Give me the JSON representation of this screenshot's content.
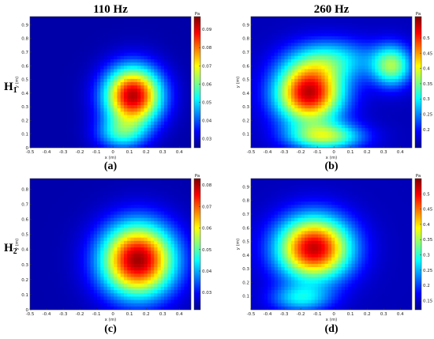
{
  "figure": {
    "column_titles": [
      "110 Hz",
      "260 Hz"
    ],
    "row_labels": [
      {
        "main": "H",
        "sub": "1"
      },
      {
        "main": "H",
        "sub": "2"
      }
    ]
  },
  "colormap": [
    "#000090",
    "#0000ff",
    "#0080ff",
    "#00ffff",
    "#80ff80",
    "#ffff00",
    "#ff8000",
    "#ff0000",
    "#800000"
  ],
  "chart_data": [
    {
      "type": "heatmap",
      "label": "(a)",
      "xlabel": "x (m)",
      "ylabel": "y (m)",
      "xlim": [
        -0.5,
        0.47
      ],
      "ylim": [
        0,
        0.96
      ],
      "xticks": [
        -0.5,
        -0.4,
        -0.3,
        -0.2,
        -0.1,
        0,
        0.1,
        0.2,
        0.3,
        0.4
      ],
      "yticks": [
        0,
        0.1,
        0.2,
        0.3,
        0.4,
        0.5,
        0.6,
        0.7,
        0.8,
        0.9
      ],
      "colorbar_unit": "Pa",
      "colorbar_range": [
        0.025,
        0.097
      ],
      "colorbar_ticks": [
        0.03,
        0.04,
        0.05,
        0.06,
        0.07,
        0.08,
        0.09
      ],
      "base": 0.027,
      "blobs": [
        {
          "x": 0.12,
          "y": 0.38,
          "amp": 0.066,
          "sx": 0.17,
          "sy": 0.21
        },
        {
          "x": 0.05,
          "y": 0.1,
          "amp": 0.022,
          "sx": 0.15,
          "sy": 0.12
        }
      ]
    },
    {
      "type": "heatmap",
      "label": "(b)",
      "xlabel": "x (m)",
      "ylabel": "y (m)",
      "xlim": [
        -0.5,
        0.47
      ],
      "ylim": [
        0,
        0.96
      ],
      "xticks": [
        -0.5,
        -0.4,
        -0.3,
        -0.2,
        -0.1,
        0,
        0.1,
        0.2,
        0.3,
        0.4
      ],
      "yticks": [
        0.1,
        0.2,
        0.3,
        0.4,
        0.5,
        0.6,
        0.7,
        0.8,
        0.9
      ],
      "colorbar_unit": "Pa",
      "colorbar_range": [
        0.14,
        0.57
      ],
      "colorbar_ticks": [
        0.2,
        0.25,
        0.3,
        0.35,
        0.4,
        0.45,
        0.5
      ],
      "base": 0.16,
      "blobs": [
        {
          "x": -0.15,
          "y": 0.4,
          "amp": 0.38,
          "sx": 0.2,
          "sy": 0.22
        },
        {
          "x": -0.05,
          "y": 0.08,
          "amp": 0.2,
          "sx": 0.22,
          "sy": 0.1
        },
        {
          "x": 0.35,
          "y": 0.6,
          "amp": 0.2,
          "sx": 0.12,
          "sy": 0.15
        },
        {
          "x": 0.0,
          "y": 0.65,
          "amp": 0.12,
          "sx": 0.25,
          "sy": 0.15
        }
      ]
    },
    {
      "type": "heatmap",
      "label": "(c)",
      "xlabel": "x (m)",
      "ylabel": "y (m)",
      "xlim": [
        -0.5,
        0.47
      ],
      "ylim": [
        0,
        0.87
      ],
      "xticks": [
        -0.5,
        -0.4,
        -0.3,
        -0.2,
        -0.1,
        0,
        0.1,
        0.2,
        0.3,
        0.4
      ],
      "yticks": [
        0,
        0.1,
        0.2,
        0.3,
        0.4,
        0.5,
        0.6,
        0.7,
        0.8
      ],
      "colorbar_unit": "Pa",
      "colorbar_range": [
        0.022,
        0.083
      ],
      "colorbar_ticks": [
        0.03,
        0.04,
        0.05,
        0.06,
        0.07,
        0.08
      ],
      "base": 0.024,
      "blobs": [
        {
          "x": 0.15,
          "y": 0.33,
          "amp": 0.057,
          "sx": 0.22,
          "sy": 0.24
        }
      ]
    },
    {
      "type": "heatmap",
      "label": "(d)",
      "xlabel": "x (m)",
      "ylabel": "y (m)",
      "xlim": [
        -0.5,
        0.47
      ],
      "ylim": [
        0,
        0.96
      ],
      "xticks": [
        -0.5,
        -0.4,
        -0.3,
        -0.2,
        -0.1,
        0,
        0.1,
        0.2,
        0.3,
        0.4
      ],
      "yticks": [
        0.1,
        0.2,
        0.3,
        0.4,
        0.5,
        0.6,
        0.7,
        0.8,
        0.9
      ],
      "colorbar_unit": "Pa",
      "colorbar_range": [
        0.12,
        0.55
      ],
      "colorbar_ticks": [
        0.15,
        0.2,
        0.25,
        0.3,
        0.35,
        0.4,
        0.45,
        0.5
      ],
      "base": 0.14,
      "blobs": [
        {
          "x": -0.12,
          "y": 0.45,
          "amp": 0.38,
          "sx": 0.22,
          "sy": 0.23
        },
        {
          "x": -0.2,
          "y": 0.08,
          "amp": 0.12,
          "sx": 0.18,
          "sy": 0.1
        }
      ]
    }
  ]
}
